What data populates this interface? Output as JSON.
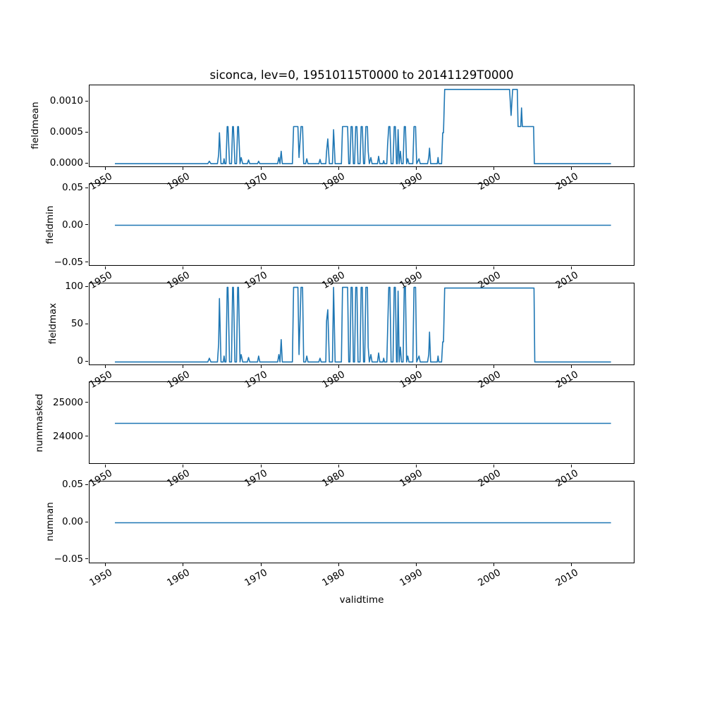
{
  "figure": {
    "title": "siconca, lev=0, 19510115T0000 to 20141129T0000",
    "xlabel": "validtime",
    "line_color": "#1f77b4",
    "text_color": "#000000"
  },
  "chart_data": [
    {
      "type": "line",
      "ylabel": "fieldmean",
      "xlim": [
        1947.8,
        2018.1
      ],
      "ylim": [
        -6.6e-05,
        0.001266
      ],
      "yticks": [
        {
          "value": 0.0,
          "label": "0.0000"
        },
        {
          "value": 0.0005,
          "label": "0.0005"
        },
        {
          "value": 0.001,
          "label": "0.0010"
        }
      ],
      "xticks": [
        {
          "value": 1950,
          "label": "1950"
        },
        {
          "value": 1960,
          "label": "1960"
        },
        {
          "value": 1970,
          "label": "1970"
        },
        {
          "value": 1980,
          "label": "1980"
        },
        {
          "value": 1990,
          "label": "1990"
        },
        {
          "value": 2000,
          "label": "2000"
        },
        {
          "value": 2010,
          "label": "2010"
        }
      ],
      "x": [
        1951.04,
        1963.0,
        1963.2,
        1963.4,
        1964.25,
        1964.4,
        1964.5,
        1964.7,
        1965.0,
        1965.1,
        1965.2,
        1965.35,
        1965.5,
        1965.6,
        1965.8,
        1966.05,
        1966.2,
        1966.3,
        1966.5,
        1966.7,
        1966.85,
        1966.95,
        1967.15,
        1967.3,
        1967.5,
        1968.1,
        1968.25,
        1968.4,
        1969.4,
        1969.55,
        1969.7,
        1972.0,
        1972.15,
        1972.3,
        1972.45,
        1972.6,
        1973.9,
        1974.05,
        1974.6,
        1974.75,
        1975.0,
        1975.2,
        1975.35,
        1975.6,
        1975.75,
        1975.9,
        1977.3,
        1977.45,
        1977.6,
        1978.2,
        1978.3,
        1978.45,
        1978.65,
        1979.05,
        1979.2,
        1979.4,
        1980.2,
        1980.35,
        1981.0,
        1981.15,
        1981.3,
        1981.45,
        1981.6,
        1981.75,
        1981.9,
        1982.05,
        1982.2,
        1982.35,
        1982.6,
        1982.75,
        1982.9,
        1983.05,
        1983.2,
        1983.35,
        1983.55,
        1983.65,
        1983.8,
        1984.0,
        1984.15,
        1984.85,
        1985.0,
        1985.15,
        1985.55,
        1985.65,
        1985.75,
        1986.05,
        1986.15,
        1986.3,
        1986.45,
        1986.6,
        1986.85,
        1987.0,
        1987.15,
        1987.3,
        1987.4,
        1987.5,
        1987.65,
        1987.8,
        1987.95,
        1988.15,
        1988.3,
        1988.45,
        1988.6,
        1988.75,
        1988.9,
        1989.4,
        1989.55,
        1989.75,
        1989.9,
        1990.2,
        1990.35,
        1991.3,
        1991.45,
        1991.55,
        1991.7,
        1992.55,
        1992.65,
        1992.75,
        1993.1,
        1993.25,
        1993.35,
        1993.5,
        2001.85,
        2002.05,
        2002.25,
        2002.85,
        2002.95,
        2003.3,
        2003.4,
        2003.5,
        2004.95,
        2005.05,
        2014.91
      ],
      "y": [
        0,
        0,
        4e-05,
        0,
        0,
        0.00015,
        0.0005,
        0,
        0,
        8e-05,
        0,
        0,
        0.0006,
        0.0006,
        0,
        0,
        0.0006,
        0.0006,
        0,
        0,
        0.0006,
        0.0006,
        0,
        0.0001,
        0,
        0,
        6e-05,
        0,
        0,
        4e-05,
        0,
        0,
        0.0001,
        0,
        0.0002,
        0,
        0,
        0.0006,
        0.0006,
        0.0001,
        0.0006,
        0.0006,
        0,
        0,
        8e-05,
        0,
        0,
        7e-05,
        0,
        0,
        0.0002,
        0.0004,
        0,
        0,
        0.00055,
        0,
        0,
        0.0006,
        0.0006,
        0,
        0,
        0.0006,
        0.0006,
        0,
        0,
        0.0006,
        0.0006,
        0,
        0,
        0.0006,
        0.0006,
        0,
        0,
        0.0006,
        0.0006,
        0.0002,
        0,
        0.0001,
        0,
        0,
        0.00012,
        0,
        0,
        5e-05,
        0,
        0,
        0.0003,
        0.0006,
        0.0006,
        0,
        0,
        0.0006,
        0.0006,
        0,
        0,
        0.00055,
        0,
        0.0002,
        0,
        0,
        0.0006,
        0.0006,
        0,
        8e-05,
        0,
        0,
        0.0006,
        0.0006,
        0,
        8e-05,
        0,
        0,
        0.0001,
        0.00025,
        0,
        0,
        0.0001,
        0,
        0,
        0.0005,
        0.0005,
        0.0012,
        0.0012,
        0.00078,
        0.0012,
        0.0012,
        0.0006,
        0.0006,
        0.0009,
        0.0006,
        0.0006,
        0,
        0
      ]
    },
    {
      "type": "line",
      "ylabel": "fieldmin",
      "xlim": [
        1947.8,
        2018.1
      ],
      "ylim": [
        -0.0555,
        0.0555
      ],
      "yticks": [
        {
          "value": -0.05,
          "label": "−0.05"
        },
        {
          "value": 0.0,
          "label": "0.00"
        },
        {
          "value": 0.05,
          "label": "0.05"
        }
      ],
      "xticks": [
        {
          "value": 1950,
          "label": "1950"
        },
        {
          "value": 1960,
          "label": "1960"
        },
        {
          "value": 1970,
          "label": "1970"
        },
        {
          "value": 1980,
          "label": "1980"
        },
        {
          "value": 1990,
          "label": "1990"
        },
        {
          "value": 2000,
          "label": "2000"
        },
        {
          "value": 2010,
          "label": "2010"
        }
      ],
      "x": [
        1951.04,
        2014.91
      ],
      "y": [
        0,
        0
      ]
    },
    {
      "type": "line",
      "ylabel": "fieldmax",
      "xlim": [
        1947.8,
        2018.1
      ],
      "ylim": [
        -5.25,
        105.25
      ],
      "yticks": [
        {
          "value": 0,
          "label": "0"
        },
        {
          "value": 50,
          "label": "50"
        },
        {
          "value": 100,
          "label": "100"
        }
      ],
      "xticks": [
        {
          "value": 1950,
          "label": "1950"
        },
        {
          "value": 1960,
          "label": "1960"
        },
        {
          "value": 1970,
          "label": "1970"
        },
        {
          "value": 1980,
          "label": "1980"
        },
        {
          "value": 1990,
          "label": "1990"
        },
        {
          "value": 2000,
          "label": "2000"
        },
        {
          "value": 2010,
          "label": "2010"
        }
      ],
      "x": [
        1951.04,
        1963.0,
        1963.2,
        1963.4,
        1964.25,
        1964.4,
        1964.5,
        1964.7,
        1965.0,
        1965.1,
        1965.2,
        1965.35,
        1965.5,
        1965.6,
        1965.8,
        1966.05,
        1966.2,
        1966.3,
        1966.5,
        1966.7,
        1966.85,
        1966.95,
        1967.15,
        1967.3,
        1967.5,
        1968.1,
        1968.25,
        1968.4,
        1969.4,
        1969.55,
        1969.7,
        1972.0,
        1972.15,
        1972.3,
        1972.45,
        1972.6,
        1973.9,
        1974.05,
        1974.6,
        1974.75,
        1975.0,
        1975.2,
        1975.35,
        1975.6,
        1975.75,
        1975.9,
        1977.3,
        1977.45,
        1977.6,
        1978.2,
        1978.3,
        1978.45,
        1978.65,
        1979.05,
        1979.2,
        1979.4,
        1980.2,
        1980.35,
        1981.0,
        1981.15,
        1981.3,
        1981.45,
        1981.6,
        1981.75,
        1981.9,
        1982.05,
        1982.2,
        1982.35,
        1982.6,
        1982.75,
        1982.9,
        1983.05,
        1983.2,
        1983.35,
        1983.55,
        1983.65,
        1983.8,
        1984.0,
        1984.15,
        1984.85,
        1985.0,
        1985.15,
        1985.55,
        1985.65,
        1985.75,
        1986.05,
        1986.15,
        1986.3,
        1986.45,
        1986.6,
        1986.85,
        1987.0,
        1987.15,
        1987.3,
        1987.4,
        1987.5,
        1987.65,
        1987.8,
        1987.95,
        1988.15,
        1988.3,
        1988.45,
        1988.6,
        1988.75,
        1988.9,
        1989.4,
        1989.55,
        1989.75,
        1989.9,
        1990.2,
        1990.35,
        1991.3,
        1991.45,
        1991.55,
        1991.7,
        1992.55,
        1992.65,
        1992.75,
        1993.1,
        1993.25,
        1993.35,
        1993.5,
        2005.0,
        2005.1,
        2014.91
      ],
      "y": [
        0,
        0,
        5,
        0,
        0,
        25,
        85,
        0,
        0,
        8,
        0,
        0,
        100,
        100,
        0,
        0,
        100,
        100,
        0,
        0,
        100,
        100,
        0,
        10,
        0,
        0,
        6,
        0,
        0,
        8,
        0,
        0,
        10,
        0,
        30,
        0,
        0,
        100,
        100,
        10,
        100,
        100,
        0,
        0,
        8,
        0,
        0,
        5,
        0,
        0,
        55,
        70,
        0,
        0,
        100,
        0,
        0,
        100,
        100,
        0,
        0,
        100,
        100,
        0,
        0,
        100,
        100,
        0,
        0,
        100,
        100,
        0,
        0,
        100,
        100,
        20,
        0,
        10,
        0,
        0,
        12,
        0,
        0,
        5,
        0,
        0,
        40,
        100,
        100,
        0,
        0,
        100,
        100,
        0,
        0,
        95,
        0,
        20,
        0,
        0,
        100,
        100,
        0,
        8,
        0,
        0,
        100,
        100,
        0,
        8,
        0,
        0,
        10,
        40,
        0,
        0,
        8,
        0,
        0,
        27,
        27,
        99,
        99,
        0,
        0
      ]
    },
    {
      "type": "line",
      "ylabel": "nummasked",
      "xlim": [
        1947.8,
        2018.1
      ],
      "ylim": [
        23180,
        25620
      ],
      "yticks": [
        {
          "value": 24000,
          "label": "24000"
        },
        {
          "value": 25000,
          "label": "25000"
        }
      ],
      "xticks": [
        {
          "value": 1950,
          "label": "1950"
        },
        {
          "value": 1960,
          "label": "1960"
        },
        {
          "value": 1970,
          "label": "1970"
        },
        {
          "value": 1980,
          "label": "1980"
        },
        {
          "value": 1990,
          "label": "1990"
        },
        {
          "value": 2000,
          "label": "2000"
        },
        {
          "value": 2010,
          "label": "2010"
        }
      ],
      "x": [
        1951.04,
        2014.91
      ],
      "y": [
        24400,
        24400
      ]
    },
    {
      "type": "line",
      "ylabel": "numnan",
      "xlim": [
        1947.8,
        2018.1
      ],
      "ylim": [
        -0.0555,
        0.0555
      ],
      "yticks": [
        {
          "value": -0.05,
          "label": "−0.05"
        },
        {
          "value": 0.0,
          "label": "0.00"
        },
        {
          "value": 0.05,
          "label": "0.05"
        }
      ],
      "xticks": [
        {
          "value": 1950,
          "label": "1950"
        },
        {
          "value": 1960,
          "label": "1960"
        },
        {
          "value": 1970,
          "label": "1970"
        },
        {
          "value": 1980,
          "label": "1980"
        },
        {
          "value": 1990,
          "label": "1990"
        },
        {
          "value": 2000,
          "label": "2000"
        },
        {
          "value": 2010,
          "label": "2010"
        }
      ],
      "x": [
        1951.04,
        2014.91
      ],
      "y": [
        0,
        0
      ]
    }
  ]
}
